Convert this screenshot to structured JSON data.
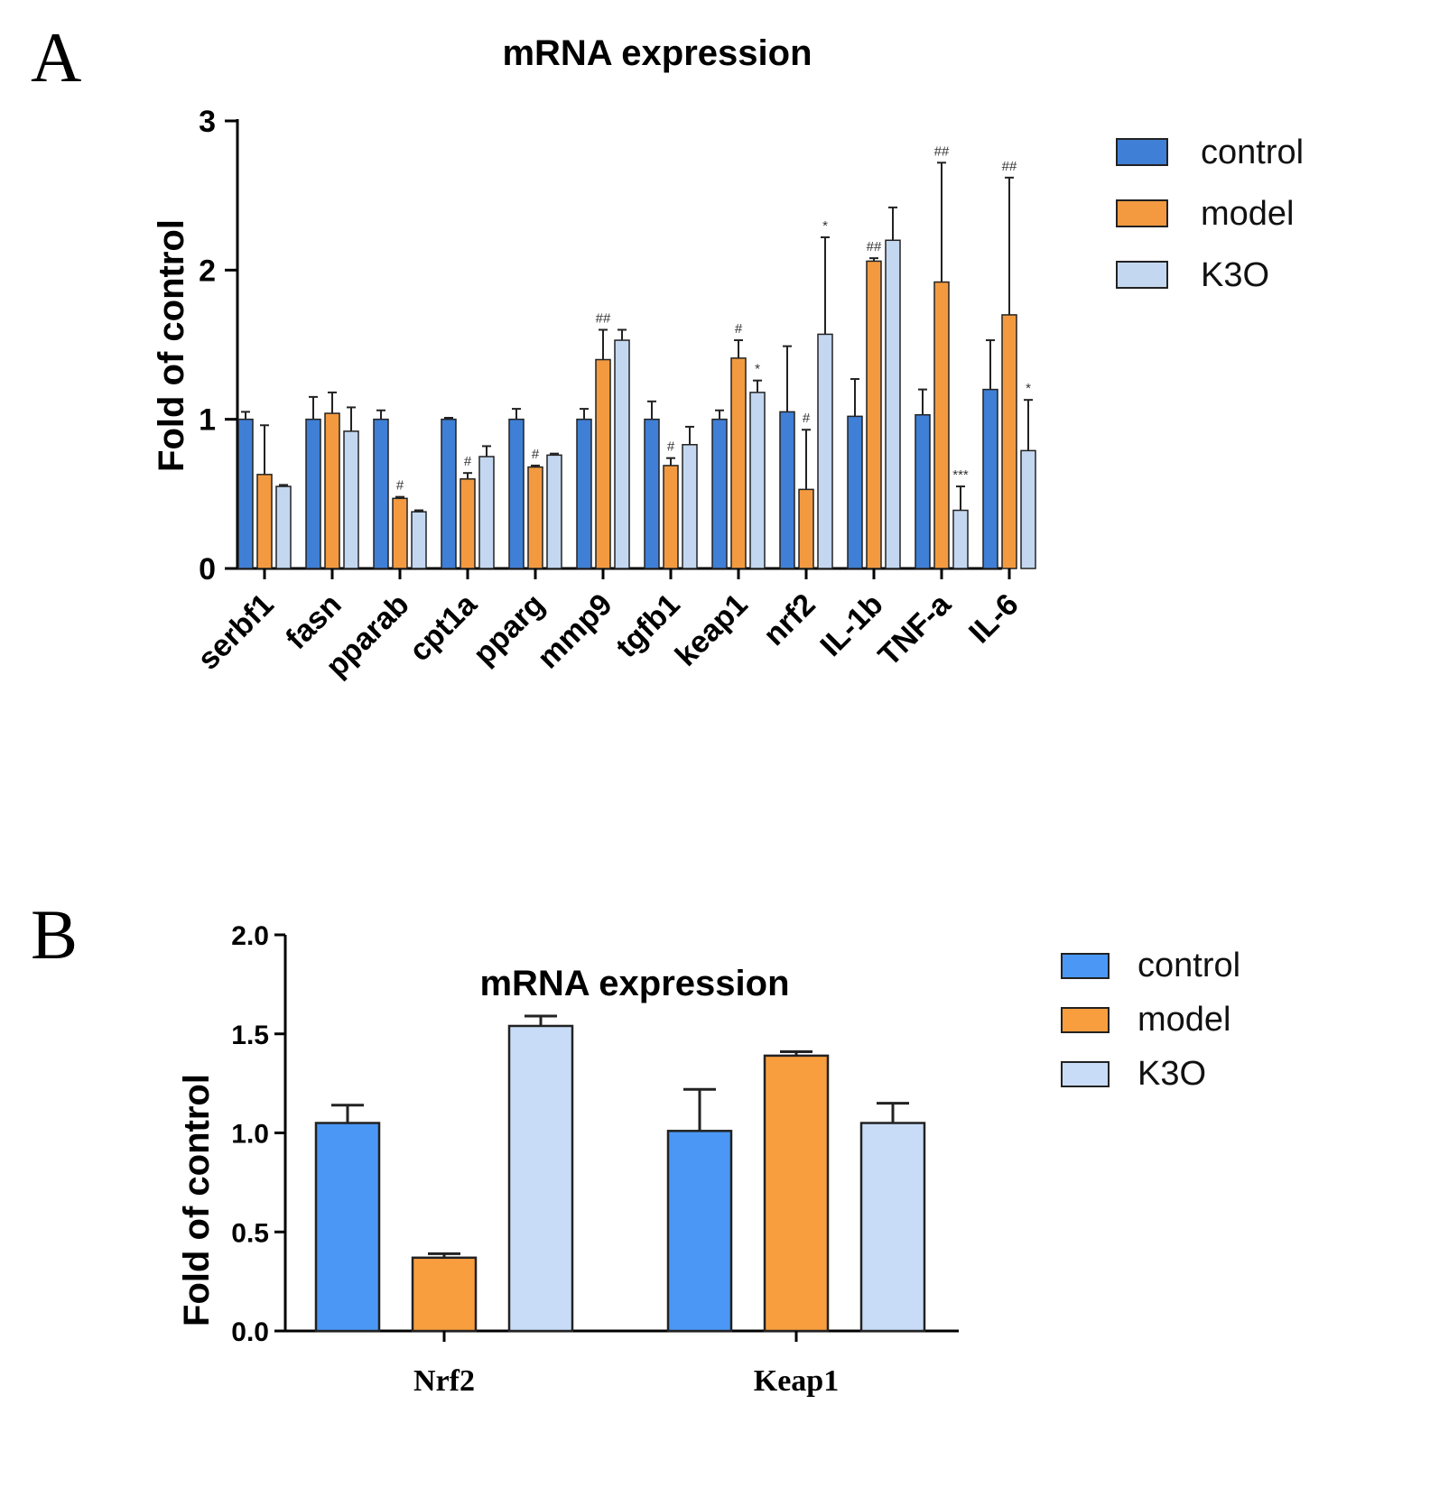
{
  "chart_data": [
    {
      "panel": "A",
      "type": "bar",
      "title": "mRNA expression",
      "xlabel": "",
      "ylabel": "Fold of control",
      "ylim": [
        0,
        3
      ],
      "yticks": [
        "0",
        "1",
        "2",
        "3"
      ],
      "categories": [
        "serbf1",
        "fasn",
        "pparab",
        "cpt1a",
        "pparg",
        "mmp9",
        "tgfb1",
        "keap1",
        "nrf2",
        "IL-1b",
        "TNF-a",
        "IL-6"
      ],
      "series": [
        {
          "name": "control",
          "color": "#3f7fd6",
          "values": [
            1.0,
            1.0,
            1.0,
            1.0,
            1.0,
            1.0,
            1.0,
            1.0,
            1.05,
            1.02,
            1.03,
            1.2
          ],
          "errors": [
            0.05,
            0.15,
            0.06,
            0.01,
            0.07,
            0.07,
            0.12,
            0.06,
            0.44,
            0.25,
            0.17,
            0.33
          ]
        },
        {
          "name": "model",
          "color": "#f39a40",
          "values": [
            0.63,
            1.04,
            0.47,
            0.6,
            0.68,
            1.4,
            0.69,
            1.41,
            0.53,
            2.06,
            1.92,
            1.7
          ],
          "errors": [
            0.33,
            0.14,
            0.01,
            0.04,
            0.01,
            0.2,
            0.05,
            0.12,
            0.4,
            0.02,
            0.8,
            0.92
          ]
        },
        {
          "name": "K3O",
          "color": "#c3d7f0",
          "values": [
            0.55,
            0.92,
            0.38,
            0.75,
            0.76,
            1.53,
            0.83,
            1.18,
            1.57,
            2.2,
            0.39,
            0.79
          ],
          "errors": [
            0.01,
            0.16,
            0.01,
            0.07,
            0.01,
            0.07,
            0.12,
            0.08,
            0.65,
            0.22,
            0.16,
            0.34
          ]
        }
      ],
      "annotations": [
        {
          "category": "pparab",
          "series": "model",
          "text": "#"
        },
        {
          "category": "cpt1a",
          "series": "model",
          "text": "#"
        },
        {
          "category": "pparg",
          "series": "model",
          "text": "#"
        },
        {
          "category": "mmp9",
          "series": "model",
          "text": "##"
        },
        {
          "category": "tgfb1",
          "series": "model",
          "text": "#"
        },
        {
          "category": "keap1",
          "series": "model",
          "text": "#"
        },
        {
          "category": "keap1",
          "series": "K3O",
          "text": "*"
        },
        {
          "category": "nrf2",
          "series": "model",
          "text": "#"
        },
        {
          "category": "nrf2",
          "series": "K3O",
          "text": "*"
        },
        {
          "category": "IL-1b",
          "series": "model",
          "text": "##"
        },
        {
          "category": "TNF-a",
          "series": "model",
          "text": "##"
        },
        {
          "category": "TNF-a",
          "series": "K3O",
          "text": "***"
        },
        {
          "category": "IL-6",
          "series": "model",
          "text": "##"
        },
        {
          "category": "IL-6",
          "series": "K3O",
          "text": "*"
        }
      ],
      "legend": {
        "position": "right",
        "entries": [
          "control",
          "model",
          "K3O"
        ]
      }
    },
    {
      "panel": "B",
      "type": "bar",
      "title": "mRNA expression",
      "xlabel": "",
      "ylabel": "Fold of control",
      "ylim": [
        0,
        2
      ],
      "yticks": [
        "0.0",
        "0.5",
        "1.0",
        "1.5",
        "2.0"
      ],
      "categories": [
        "Nrf2",
        "Keap1"
      ],
      "series": [
        {
          "name": "control",
          "color": "#4a97f5",
          "values": [
            1.05,
            1.01
          ],
          "errors": [
            0.09,
            0.21
          ]
        },
        {
          "name": "model",
          "color": "#f89e3e",
          "values": [
            0.37,
            1.39
          ],
          "errors": [
            0.02,
            0.02
          ]
        },
        {
          "name": "K3O",
          "color": "#c8dcf7",
          "values": [
            1.54,
            1.05
          ],
          "errors": [
            0.05,
            0.1
          ]
        }
      ],
      "legend": {
        "position": "right",
        "entries": [
          "control",
          "model",
          "K3O"
        ]
      }
    }
  ]
}
